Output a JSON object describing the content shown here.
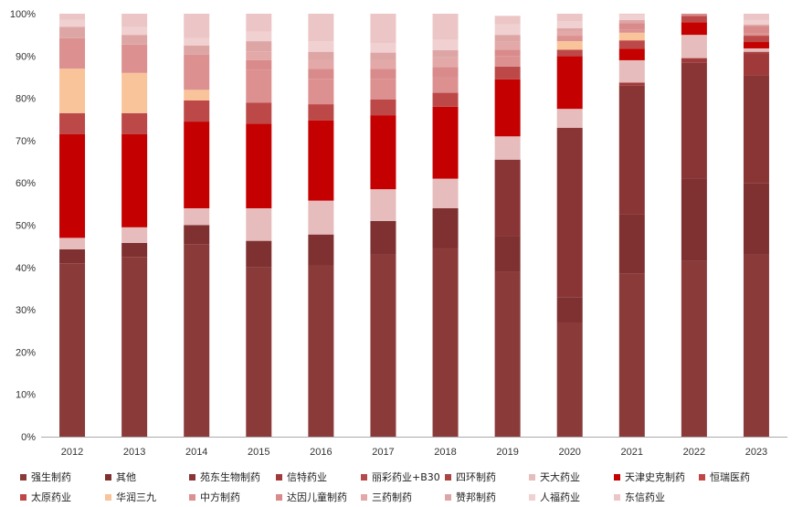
{
  "chart_data": {
    "type": "bar",
    "stacked": true,
    "normalized": true,
    "categories": [
      "2012",
      "2013",
      "2014",
      "2015",
      "2016",
      "2017",
      "2018",
      "2019",
      "2020",
      "2021",
      "2022",
      "2023"
    ],
    "ylim": [
      0,
      100
    ],
    "yticks": [
      0,
      10,
      20,
      30,
      40,
      50,
      60,
      70,
      80,
      90,
      100
    ],
    "ytick_labels": [
      "0%",
      "10%",
      "20%",
      "30%",
      "40%",
      "50%",
      "60%",
      "70%",
      "80%",
      "90%",
      "100%"
    ],
    "grid": false,
    "legend_position": "bottom",
    "series": [
      {
        "name": "强生制药",
        "color": "#8b3a3a",
        "values": [
          41,
          42.5,
          45.5,
          40,
          40.5,
          43,
          44.5,
          39,
          27,
          38.5,
          41.5,
          43
        ]
      },
      {
        "name": "其他",
        "color": "#7f3030",
        "values": [
          3.3,
          3.3,
          4.5,
          6.3,
          7.3,
          8,
          9.5,
          8.5,
          6,
          14,
          19.5,
          17
        ]
      },
      {
        "name": "苑东生物制药",
        "color": "#8a3535",
        "values": [
          0,
          0,
          0,
          0,
          0,
          0,
          0,
          18,
          40,
          30.5,
          27.5,
          25.5
        ]
      },
      {
        "name": "信特药业",
        "color": "#a03a3a",
        "values": [
          0,
          0,
          0,
          0,
          0,
          0,
          0,
          0,
          0,
          0.7,
          1,
          5
        ]
      },
      {
        "name": "丽彩药业+B30",
        "color": "#b44a4a",
        "values": [
          0,
          0,
          0,
          0,
          0,
          0,
          0,
          0,
          0,
          0,
          0,
          0
        ]
      },
      {
        "name": "四环制药",
        "color": "#a84444",
        "values": [
          0,
          0,
          0,
          0,
          0,
          0,
          0,
          0,
          0,
          0,
          0,
          0.5
        ]
      },
      {
        "name": "天大药业",
        "color": "#e6bcbc",
        "values": [
          2.7,
          3.7,
          4,
          7.7,
          8,
          7.5,
          7,
          5.5,
          4.5,
          5.3,
          5.5,
          0.8
        ]
      },
      {
        "name": "天津史克制药",
        "color": "#c40000",
        "values": [
          24.5,
          22,
          20.5,
          20,
          19,
          17.5,
          17,
          13.5,
          12.5,
          2.7,
          3,
          1.5
        ]
      },
      {
        "name": "恒瑞医药",
        "color": "#c04545",
        "values": [
          0,
          0,
          0,
          0,
          0,
          0,
          0,
          0,
          0,
          0,
          0,
          0
        ]
      },
      {
        "name": "太原药业",
        "color": "#bd4848",
        "values": [
          5,
          5,
          5,
          5,
          3.8,
          3.7,
          3.3,
          3,
          1.5,
          2,
          1.5,
          1.5
        ]
      },
      {
        "name": "华润三九",
        "color": "#f9c49a",
        "values": [
          10.5,
          9.5,
          2.5,
          0,
          0,
          0,
          0,
          0,
          2,
          1.8,
          0,
          0
        ]
      },
      {
        "name": "中方制药",
        "color": "#dc9090",
        "values": [
          7.2,
          6.7,
          8.3,
          7.8,
          6,
          4.8,
          3.7,
          2.5,
          1.3,
          0.8,
          0,
          0.5
        ]
      },
      {
        "name": "达因儿童制药",
        "color": "#d98a8a",
        "values": [
          0,
          0,
          0,
          2.2,
          2.4,
          2.5,
          2.4,
          1.5,
          0,
          1.5,
          0.5,
          1.8
        ]
      },
      {
        "name": "三药制药",
        "color": "#e3a8a8",
        "values": [
          0,
          0,
          0,
          2.1,
          2,
          2,
          2.3,
          2,
          1,
          0,
          0,
          0
        ]
      },
      {
        "name": "赞邦制药",
        "color": "#dea5a5",
        "values": [
          2.7,
          2.3,
          2.2,
          2.4,
          2,
          1.8,
          1.7,
          1.5,
          0.8,
          0.7,
          0,
          0.3
        ]
      },
      {
        "name": "人福药业",
        "color": "#f0d0d0",
        "values": [
          1.7,
          1.8,
          1.7,
          2.3,
          2.5,
          2.2,
          2.4,
          2.5,
          1.6,
          1.3,
          0,
          1.1
        ]
      },
      {
        "name": "东信药业",
        "color": "#ecc6c6",
        "values": [
          1.4,
          3.2,
          5.8,
          4.2,
          6.5,
          7,
          6.2,
          2,
          1.8,
          0.2,
          0,
          1.5
        ]
      }
    ]
  }
}
